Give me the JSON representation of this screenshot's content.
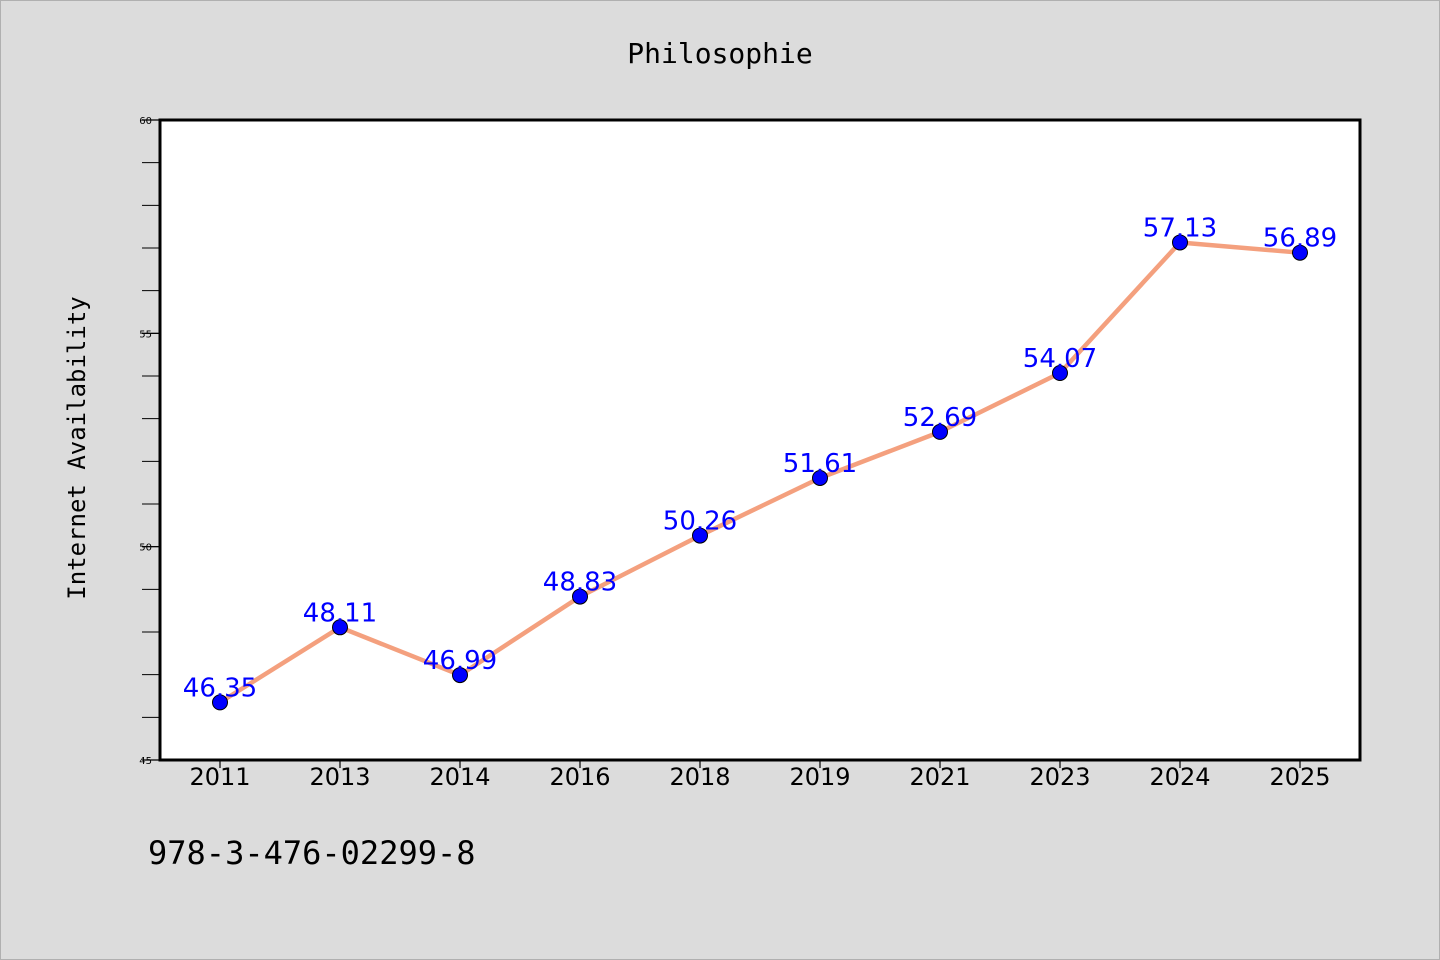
{
  "chart_data": {
    "type": "line",
    "title": "Philosophie",
    "xlabel": "",
    "ylabel": "Internet Availability",
    "categories": [
      "2011",
      "2013",
      "2014",
      "2016",
      "2018",
      "2019",
      "2021",
      "2023",
      "2024",
      "2025"
    ],
    "series": [
      {
        "values": [
          46.35,
          48.11,
          46.99,
          48.83,
          50.26,
          51.61,
          52.69,
          54.07,
          57.13,
          56.89
        ]
      }
    ],
    "data_labels": [
      "46.35",
      "48.11",
      "46.99",
      "48.83",
      "50.26",
      "51.61",
      "52.69",
      "54.07",
      "57.13",
      "56.89"
    ],
    "ylim": [
      45,
      60
    ],
    "yticks": [
      "45",
      "50",
      "55",
      "60"
    ],
    "grid": false,
    "colors": {
      "background": "#dcdcdc",
      "plot_background": "#ffffff",
      "line": "#f4a07e",
      "marker": "#0000ff",
      "label": "#0000ff"
    }
  },
  "footer": {
    "isbn": "978-3-476-02299-8"
  }
}
